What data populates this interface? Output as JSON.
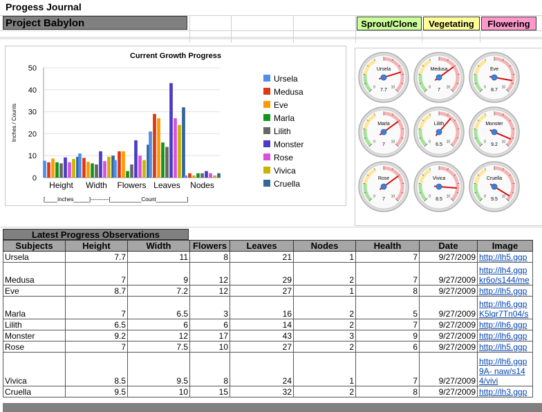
{
  "app": {
    "title": "Progess Journal"
  },
  "project": {
    "name": "Project Babylon"
  },
  "stage_legend": [
    {
      "label": "Sprout/Clone",
      "color": "#ccff99"
    },
    {
      "label": "Vegetating",
      "color": "#ffff99"
    },
    {
      "label": "Flowering",
      "color": "#ff99cc"
    }
  ],
  "chart_data": {
    "type": "bar",
    "title": "Current Growth Progress",
    "ylabel": "Inches / Counts",
    "xlabel": "",
    "ylim": [
      0,
      50
    ],
    "yticks": [
      0,
      10,
      20,
      30,
      40,
      50
    ],
    "categories": [
      "Height",
      "Width",
      "Flowers",
      "Leaves",
      "Nodes"
    ],
    "group_labels": [
      "[____Inches_____]----------[__________Count__________]"
    ],
    "legend_position": "right",
    "series": [
      {
        "name": "Ursela",
        "color": "#4f8fe8",
        "values": [
          7.7,
          11,
          8,
          21,
          1
        ]
      },
      {
        "name": "Medusa",
        "color": "#dc3912",
        "values": [
          7,
          9,
          12,
          29,
          2
        ]
      },
      {
        "name": "Eve",
        "color": "#ff9900",
        "values": [
          8.7,
          7.2,
          12,
          27,
          1
        ]
      },
      {
        "name": "Marla",
        "color": "#109618",
        "values": [
          7,
          6.5,
          3,
          16,
          2
        ]
      },
      {
        "name": "Lilith",
        "color": "#666666",
        "values": [
          6.5,
          6,
          6,
          14,
          2
        ]
      },
      {
        "name": "Monster",
        "color": "#4a3cc8",
        "values": [
          9.2,
          12,
          17,
          43,
          3
        ]
      },
      {
        "name": "Rose",
        "color": "#dd4edb",
        "values": [
          7,
          7.5,
          10,
          27,
          2
        ]
      },
      {
        "name": "Vivica",
        "color": "#c9b300",
        "values": [
          8.5,
          9.5,
          8,
          24,
          1
        ]
      },
      {
        "name": "Cruella",
        "color": "#336699",
        "values": [
          9.5,
          10,
          15,
          32,
          2
        ]
      }
    ]
  },
  "gauges": [
    {
      "name": "Ursela",
      "value": "7.7",
      "reading": 7.7
    },
    {
      "name": "Medusa",
      "value": "7",
      "reading": 7
    },
    {
      "name": "Eve",
      "value": "8.7",
      "reading": 8.7
    },
    {
      "name": "Marla",
      "value": "7",
      "reading": 7
    },
    {
      "name": "Lilith",
      "value": "6.5",
      "reading": 6.5
    },
    {
      "name": "Monster",
      "value": "9.2",
      "reading": 9.2
    },
    {
      "name": "Rose",
      "value": "7",
      "reading": 7
    },
    {
      "name": "Vivica",
      "value": "8.5",
      "reading": 8.5
    },
    {
      "name": "Cruella",
      "value": "9.5",
      "reading": 9.5
    }
  ],
  "gauge_scale": {
    "min": 0,
    "max": 10
  },
  "observations": {
    "title": "Latest Progress Observations",
    "columns": [
      "Subjects",
      "Height",
      "Width",
      "Flowers",
      "Leaves",
      "Nodes",
      "Health",
      "Date",
      "Image"
    ],
    "rows": [
      [
        "Ursela",
        "7.7",
        "11",
        "8",
        "21",
        "1",
        "7",
        "9/27/2009",
        "http://lh5.ggp"
      ],
      [
        "Medusa",
        "7",
        "9",
        "12",
        "29",
        "2",
        "7",
        "9/27/2009",
        "http://lh4.ggp kr6o/s144/me"
      ],
      [
        "Eve",
        "8.7",
        "7.2",
        "12",
        "27",
        "1",
        "8",
        "9/27/2009",
        "http://lh5.ggp"
      ],
      [
        "Marla",
        "7",
        "6.5",
        "3",
        "16",
        "2",
        "5",
        "9/27/2009",
        "http://lh6.ggp K5lqr7Tn04/s"
      ],
      [
        "Lilith",
        "6.5",
        "6",
        "6",
        "14",
        "2",
        "7",
        "9/27/2009",
        "http://lh6.ggp"
      ],
      [
        "Monster",
        "9.2",
        "12",
        "17",
        "43",
        "3",
        "9",
        "9/27/2009",
        "http://lh6.ggp"
      ],
      [
        "Rose",
        "7",
        "7.5",
        "10",
        "27",
        "2",
        "6",
        "9/27/2009",
        "http://lh5.ggp"
      ],
      [
        "Vivica",
        "8.5",
        "9.5",
        "8",
        "24",
        "1",
        "7",
        "9/27/2009",
        "http://lh6.ggp 9A- naw/s144/vivi"
      ],
      [
        "Cruella",
        "9.5",
        "10",
        "15",
        "32",
        "2",
        "8",
        "9/27/2009",
        "http://lh3.ggp"
      ]
    ]
  }
}
